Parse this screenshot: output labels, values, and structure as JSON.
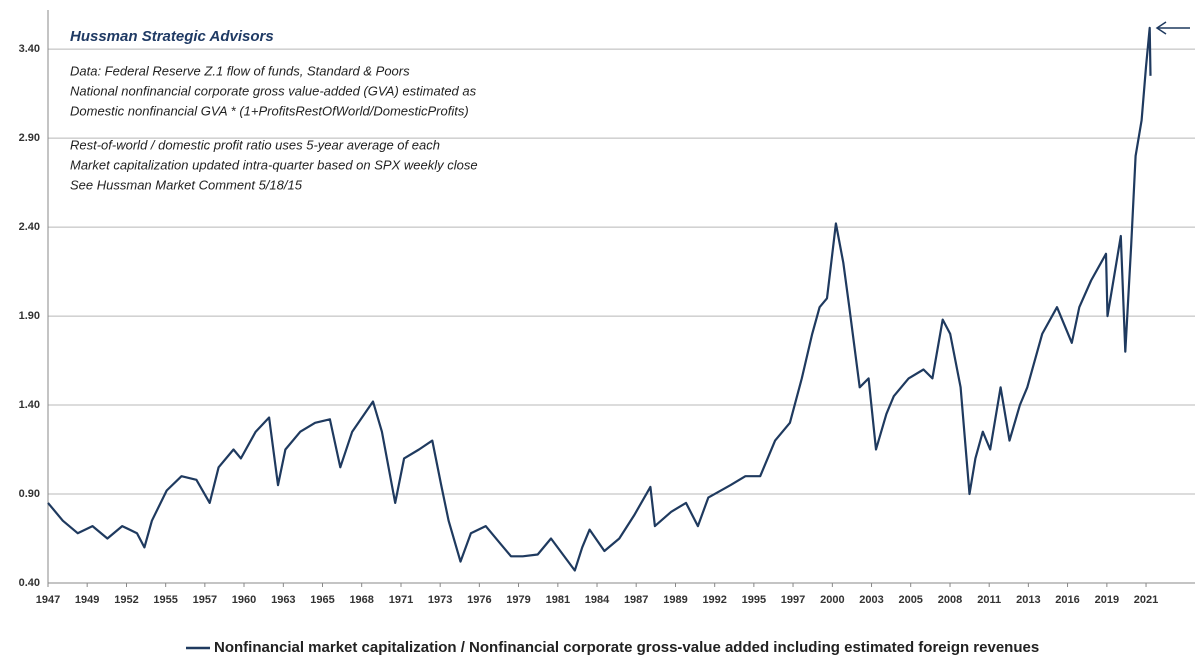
{
  "chart_data": {
    "type": "line",
    "title": "Hussman Strategic Advisors",
    "annotations": [
      "Data: Federal Reserve Z.1 flow of funds, Standard & Poors",
      "National nonfinancial corporate gross value-added (GVA) estimated as",
      "Domestic nonfinancial GVA * (1+ProfitsRestOfWorld/DomesticProfits)",
      "Rest-of-world / domestic profit ratio uses 5-year average of each",
      "Market capitalization updated intra-quarter  based on SPX weekly close",
      "See Hussman Market Comment 5/18/15"
    ],
    "x": [
      1947,
      1948,
      1949,
      1950,
      1951,
      1952,
      1953,
      1953.5,
      1954,
      1955,
      1956,
      1957,
      1957.9,
      1958.5,
      1959.5,
      1960,
      1961,
      1961.9,
      1962.5,
      1963,
      1964,
      1965,
      1966,
      1966.7,
      1967.5,
      1968.9,
      1969.5,
      1970.4,
      1971,
      1972,
      1972.9,
      1973.5,
      1974,
      1974.8,
      1975.5,
      1976.5,
      1977.5,
      1978.2,
      1979,
      1980,
      1980.9,
      1982.5,
      1983,
      1983.5,
      1984.5,
      1985.5,
      1986.5,
      1987.6,
      1987.9,
      1989,
      1990,
      1990.8,
      1991.5,
      1993,
      1994,
      1995,
      1996,
      1997,
      1997.8,
      1998.5,
      1999,
      1999.5,
      2000.1,
      2000.6,
      2001,
      2001.7,
      2002.3,
      2002.8,
      2003.5,
      2004,
      2005,
      2006,
      2006.6,
      2007.3,
      2007.8,
      2008.5,
      2009.1,
      2009.5,
      2010,
      2010.5,
      2011.2,
      2011.8,
      2012.5,
      2013,
      2014,
      2015,
      2016,
      2016.5,
      2017.3,
      2018.3,
      2018.4,
      2019,
      2019.3,
      2019.6,
      2020,
      2020.3,
      2020.7,
      2021,
      2021.25,
      2021.3
    ],
    "series": [
      {
        "name": "Nonfinancial market capitalization / Nonfinancial corporate gross-value added including estimated foreign revenues",
        "color": "#1f3a5f",
        "values": [
          0.85,
          0.75,
          0.68,
          0.72,
          0.65,
          0.72,
          0.68,
          0.6,
          0.75,
          0.92,
          1.0,
          0.98,
          0.85,
          1.05,
          1.15,
          1.1,
          1.25,
          1.33,
          0.95,
          1.15,
          1.25,
          1.3,
          1.32,
          1.05,
          1.25,
          1.42,
          1.25,
          0.85,
          1.1,
          1.15,
          1.2,
          0.95,
          0.75,
          0.52,
          0.68,
          0.72,
          0.62,
          0.55,
          0.55,
          0.56,
          0.65,
          0.47,
          0.6,
          0.7,
          0.58,
          0.65,
          0.78,
          0.94,
          0.72,
          0.8,
          0.85,
          0.72,
          0.88,
          0.95,
          1.0,
          1.0,
          1.2,
          1.3,
          1.55,
          1.8,
          1.95,
          2.0,
          2.42,
          2.2,
          1.95,
          1.5,
          1.55,
          1.15,
          1.35,
          1.45,
          1.55,
          1.6,
          1.55,
          1.88,
          1.8,
          1.5,
          0.9,
          1.1,
          1.25,
          1.15,
          1.5,
          1.2,
          1.4,
          1.5,
          1.8,
          1.95,
          1.75,
          1.95,
          2.1,
          2.25,
          1.9,
          2.2,
          2.35,
          1.7,
          2.3,
          2.8,
          3.0,
          3.3,
          3.52,
          3.25
        ]
      }
    ],
    "xlim": [
      1947,
      2024.3
    ],
    "xticks": [
      {
        "value": 1947,
        "label": "1947"
      },
      {
        "value": 1949.64,
        "label": "1949"
      },
      {
        "value": 1952.29,
        "label": "1952"
      },
      {
        "value": 1954.93,
        "label": "1955"
      },
      {
        "value": 1957.57,
        "label": "1957"
      },
      {
        "value": 1960.21,
        "label": "1960"
      },
      {
        "value": 1962.86,
        "label": "1963"
      },
      {
        "value": 1965.5,
        "label": "1965"
      },
      {
        "value": 1968.14,
        "label": "1968"
      },
      {
        "value": 1970.79,
        "label": "1971"
      },
      {
        "value": 1973.43,
        "label": "1973"
      },
      {
        "value": 1976.07,
        "label": "1976"
      },
      {
        "value": 1978.71,
        "label": "1979"
      },
      {
        "value": 1981.36,
        "label": "1981"
      },
      {
        "value": 1984,
        "label": "1984"
      },
      {
        "value": 1986.64,
        "label": "1987"
      },
      {
        "value": 1989.29,
        "label": "1989"
      },
      {
        "value": 1991.93,
        "label": "1992"
      },
      {
        "value": 1994.57,
        "label": "1995"
      },
      {
        "value": 1997.21,
        "label": "1997"
      },
      {
        "value": 1999.86,
        "label": "2000"
      },
      {
        "value": 2002.5,
        "label": "2003"
      },
      {
        "value": 2005.14,
        "label": "2005"
      },
      {
        "value": 2007.79,
        "label": "2008"
      },
      {
        "value": 2010.43,
        "label": "2011"
      },
      {
        "value": 2013.07,
        "label": "2013"
      },
      {
        "value": 2015.71,
        "label": "2016"
      },
      {
        "value": 2018.36,
        "label": "2019"
      },
      {
        "value": 2021,
        "label": "2021"
      }
    ],
    "ylim": [
      0.4,
      3.62
    ],
    "yticks": [
      {
        "value": 0.4,
        "label": "0.40"
      },
      {
        "value": 0.9,
        "label": "0.90"
      },
      {
        "value": 1.4,
        "label": "1.40"
      },
      {
        "value": 1.9,
        "label": "1.90"
      },
      {
        "value": 2.4,
        "label": "2.40"
      },
      {
        "value": 2.9,
        "label": "2.90"
      },
      {
        "value": 3.4,
        "label": "3.40"
      }
    ],
    "grid": true
  }
}
